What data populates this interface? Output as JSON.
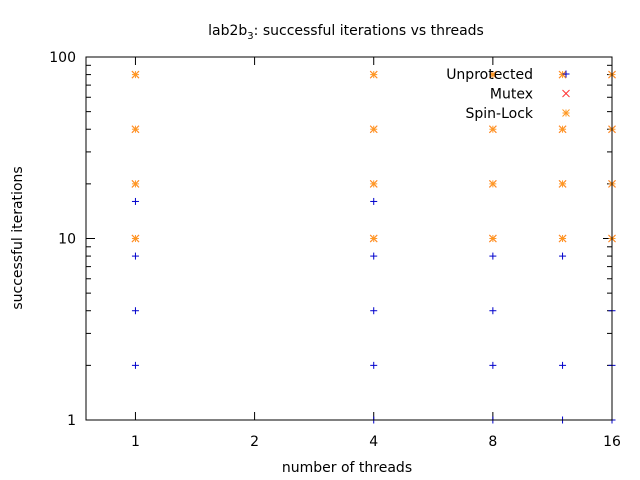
{
  "chart_data": {
    "type": "scatter",
    "title": {
      "main": "lab2b",
      "sub": "3",
      "rest": ": successful iterations vs threads"
    },
    "xlabel": "number of threads",
    "ylabel": "successful iterations",
    "xscale": "log2",
    "yscale": "log10",
    "xlim": [
      0.75,
      16
    ],
    "ylim": [
      1,
      100
    ],
    "xticks": [
      {
        "value": 1,
        "label": "1"
      },
      {
        "value": 2,
        "label": "2"
      },
      {
        "value": 4,
        "label": "4"
      },
      {
        "value": 8,
        "label": "8"
      },
      {
        "value": 16,
        "label": "16"
      }
    ],
    "yticks": [
      {
        "value": 1,
        "label": "1"
      },
      {
        "value": 10,
        "label": "10"
      },
      {
        "value": 100,
        "label": "100"
      }
    ],
    "legend_position": "top-right",
    "series": [
      {
        "name": "Unprotected",
        "marker": "plus",
        "color": "#0000cc",
        "points": [
          [
            1,
            2
          ],
          [
            1,
            4
          ],
          [
            1,
            8
          ],
          [
            1,
            16
          ],
          [
            4,
            1
          ],
          [
            4,
            2
          ],
          [
            4,
            4
          ],
          [
            4,
            8
          ],
          [
            4,
            16
          ],
          [
            8,
            1
          ],
          [
            8,
            2
          ],
          [
            8,
            4
          ],
          [
            8,
            8
          ],
          [
            12,
            1
          ],
          [
            12,
            2
          ],
          [
            12,
            8
          ],
          [
            16,
            1
          ],
          [
            16,
            2
          ],
          [
            16,
            4
          ]
        ]
      },
      {
        "name": "Mutex",
        "marker": "cross",
        "color": "#ff3333",
        "points": [
          [
            1,
            10
          ],
          [
            1,
            20
          ],
          [
            1,
            40
          ],
          [
            1,
            80
          ],
          [
            4,
            10
          ],
          [
            4,
            20
          ],
          [
            4,
            40
          ],
          [
            4,
            80
          ],
          [
            8,
            10
          ],
          [
            8,
            20
          ],
          [
            8,
            40
          ],
          [
            8,
            80
          ],
          [
            12,
            10
          ],
          [
            12,
            20
          ],
          [
            12,
            40
          ],
          [
            12,
            80
          ],
          [
            16,
            10
          ],
          [
            16,
            20
          ],
          [
            16,
            40
          ],
          [
            16,
            80
          ]
        ]
      },
      {
        "name": "Spin-Lock",
        "marker": "star",
        "color": "#ff9922",
        "points": [
          [
            1,
            10
          ],
          [
            1,
            20
          ],
          [
            1,
            40
          ],
          [
            1,
            80
          ],
          [
            4,
            10
          ],
          [
            4,
            20
          ],
          [
            4,
            40
          ],
          [
            4,
            80
          ],
          [
            8,
            10
          ],
          [
            8,
            20
          ],
          [
            8,
            40
          ],
          [
            8,
            80
          ],
          [
            12,
            10
          ],
          [
            12,
            20
          ],
          [
            12,
            40
          ],
          [
            12,
            80
          ],
          [
            16,
            10
          ],
          [
            16,
            20
          ],
          [
            16,
            40
          ],
          [
            16,
            80
          ]
        ]
      }
    ]
  }
}
